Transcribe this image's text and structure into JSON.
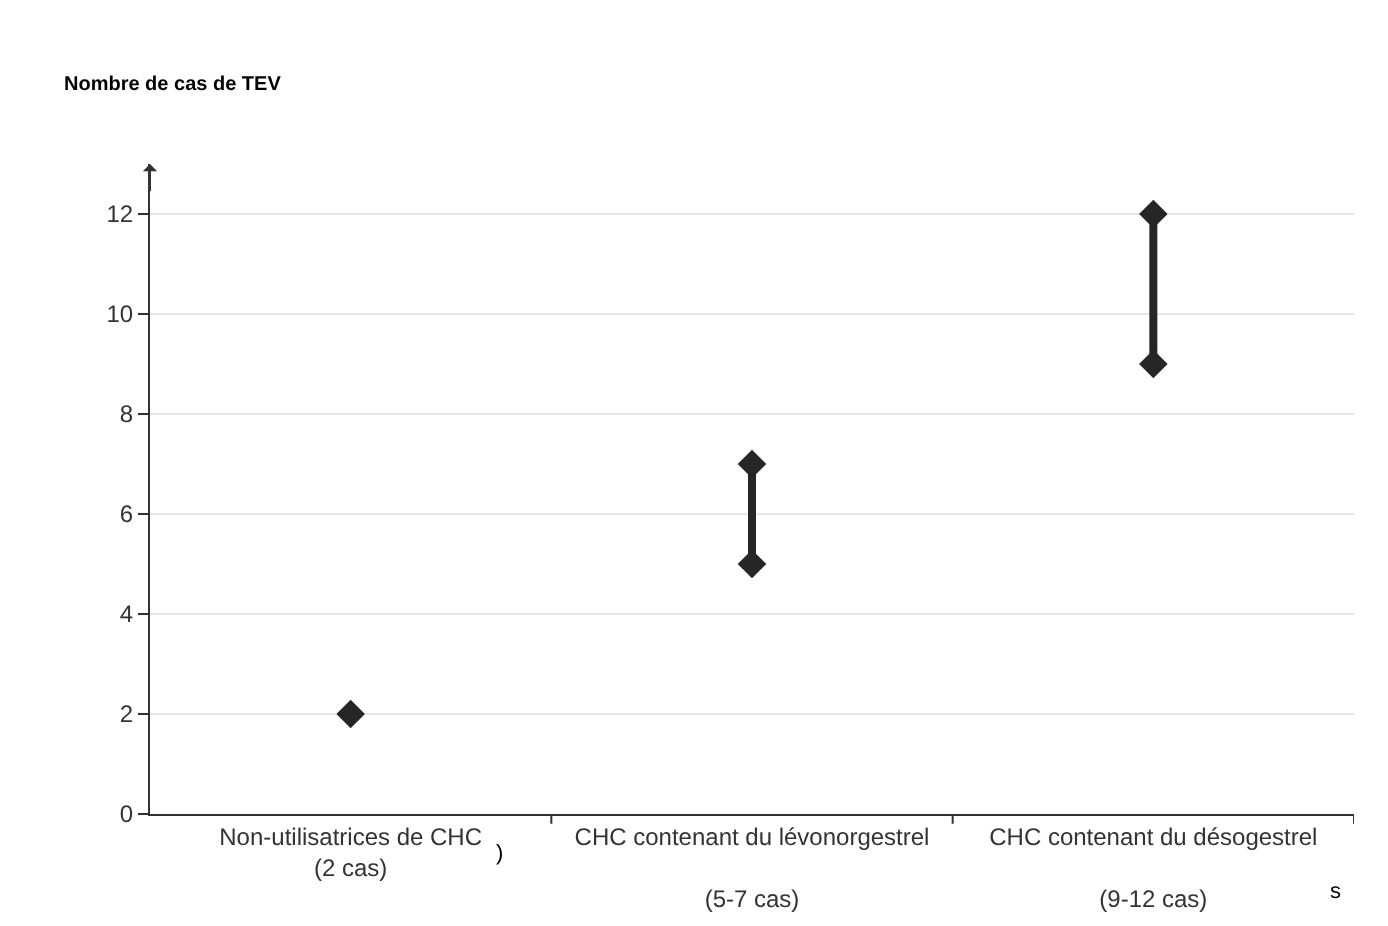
{
  "chart_data": {
    "type": "scatter",
    "categories": [
      "Non-utilisatrices de CHC\n(2 cas)",
      "CHC contenant du lévonorgestrel\n\n(5-7 cas)",
      "CHC contenant du désogestrel\n\n(9-12 cas)"
    ],
    "series": [
      {
        "color": "#262626",
        "x": [
          "Non-utilisatrices de CHC\n(2 cas)"
        ],
        "values": [
          2
        ]
      },
      {
        "type": "line",
        "color": "#262626",
        "x": [
          "CHC contenant du lévonorgestrel\n\n(5-7 cas)",
          "CHC contenant du lévonorgestrel\n\n(5-7 cas)"
        ],
        "values": [
          5,
          7
        ]
      },
      {
        "type": "line",
        "color": "#262626",
        "x": [
          "CHC contenant du désogestrel\n\n(9-12 cas)",
          "CHC contenant du désogestrel\n\n(9-12 cas)"
        ],
        "values": [
          9,
          12
        ]
      }
    ],
    "ylim": [
      0,
      13
    ],
    "yticks": [
      0,
      2,
      4,
      6,
      8,
      10,
      12
    ],
    "grid": "y",
    "marker": "diamond",
    "line_style": "solid",
    "annotations": [
      "Nombre de cas de TEV",
      ")",
      "s"
    ]
  }
}
